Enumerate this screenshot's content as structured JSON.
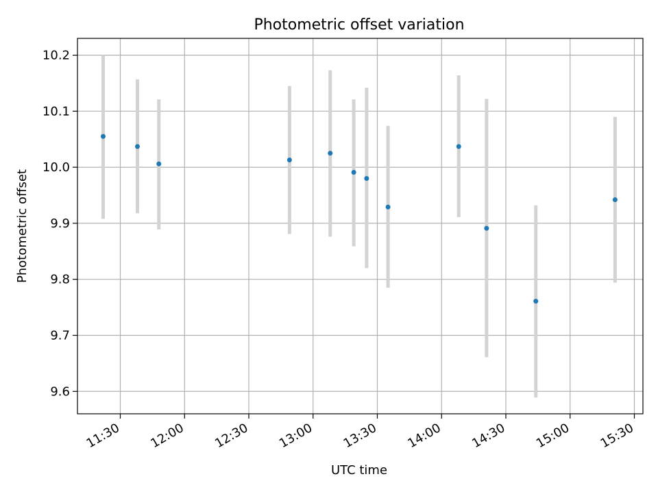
{
  "chart_data": {
    "type": "scatter",
    "title": "Photometric offset variation",
    "xlabel": "UTC time",
    "ylabel": "Photometric offset",
    "x_type": "time",
    "xlim": [
      "11:10",
      "15:34"
    ],
    "ylim": [
      9.56,
      10.23
    ],
    "x_ticks": [
      "11:30",
      "12:00",
      "12:30",
      "13:00",
      "13:30",
      "14:00",
      "14:30",
      "15:00",
      "15:30"
    ],
    "y_ticks": [
      "9.6",
      "9.7",
      "9.8",
      "9.9",
      "10.0",
      "10.1",
      "10.2"
    ],
    "grid": true,
    "series": [
      {
        "marker_color": "#1f77b4",
        "errorbar_color": "#d3d3d3",
        "points": [
          {
            "x": "11:22",
            "y": 10.055,
            "ylow": 9.908,
            "yhigh": 10.2
          },
          {
            "x": "11:38",
            "y": 10.037,
            "ylow": 9.918,
            "yhigh": 10.157
          },
          {
            "x": "11:48",
            "y": 10.006,
            "ylow": 9.889,
            "yhigh": 10.121
          },
          {
            "x": "12:49",
            "y": 10.013,
            "ylow": 9.881,
            "yhigh": 10.145
          },
          {
            "x": "13:08",
            "y": 10.025,
            "ylow": 9.876,
            "yhigh": 10.173
          },
          {
            "x": "13:19",
            "y": 9.991,
            "ylow": 9.859,
            "yhigh": 10.121
          },
          {
            "x": "13:25",
            "y": 9.98,
            "ylow": 9.82,
            "yhigh": 10.142
          },
          {
            "x": "13:35",
            "y": 9.929,
            "ylow": 9.785,
            "yhigh": 10.074
          },
          {
            "x": "14:08",
            "y": 10.037,
            "ylow": 9.911,
            "yhigh": 10.164
          },
          {
            "x": "14:21",
            "y": 9.891,
            "ylow": 9.661,
            "yhigh": 10.122
          },
          {
            "x": "14:44",
            "y": 9.761,
            "ylow": 9.589,
            "yhigh": 9.932
          },
          {
            "x": "15:21",
            "y": 9.942,
            "ylow": 9.794,
            "yhigh": 10.09
          }
        ]
      }
    ]
  }
}
